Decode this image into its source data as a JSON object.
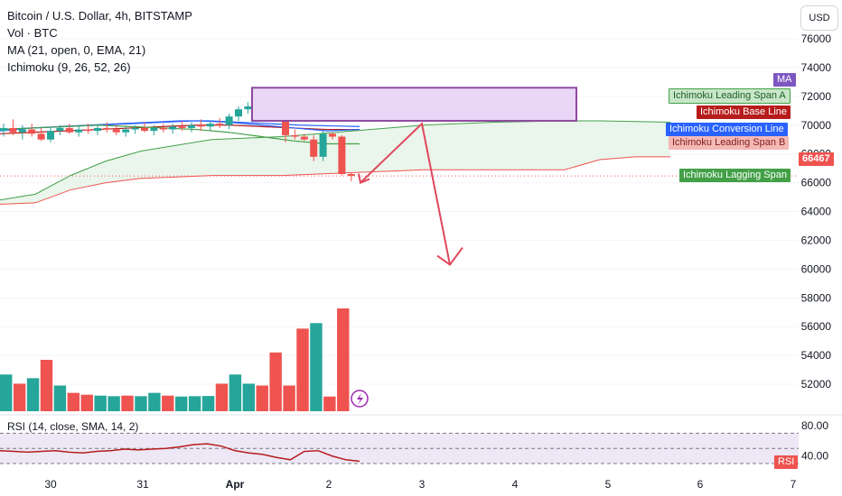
{
  "header": {
    "symbol_title": "Bitcoin / U.S. Dollar, 4h, BITSTAMP",
    "volume_label": "Vol · BTC",
    "ma_label": "MA (21, open, 0, EMA, 21)",
    "ichimoku_label": "Ichimoku (9, 26, 52, 26)",
    "currency_button": "USD"
  },
  "rsi_panel": {
    "label": "RSI (14, close, SMA, 14, 2)",
    "axis_ticks": [
      "80.00",
      "40.00"
    ],
    "tag": "RSI"
  },
  "price_tags": {
    "ma": "MA",
    "leading_span_a": "Ichimoku Leading Span A",
    "base_line": "Ichimoku Base Line",
    "conversion_line": "Ichimoku Conversion Line",
    "leading_span_b": "Ichimoku Leading Span B",
    "last_price": "66467",
    "lagging_span": "Ichimoku Lagging Span"
  },
  "colors": {
    "bull": "#26a69a",
    "bear": "#ef5350",
    "ma": "#2962ff",
    "conversion": "#2962ff",
    "base": "#b71c1c",
    "span_a": "#43a047",
    "span_b": "#ef5350",
    "lagging": "#43a047",
    "cloud": "#e8f5e9",
    "zone_fill": "#ead7f7",
    "zone_border": "#8e4a9e",
    "arrow": "#e0475b",
    "rsi_line": "#b71c1c",
    "rsi_band": "#ede7f6"
  },
  "chart_data": {
    "type": "candlestick",
    "y_axis": {
      "ticks": [
        76000,
        74000,
        72000,
        70000,
        68000,
        66000,
        64000,
        62000,
        60000,
        58000,
        56000,
        54000,
        52000
      ],
      "range": [
        50000,
        77000
      ]
    },
    "x_axis": {
      "tick_labels": [
        "30",
        "31",
        "Apr",
        "2",
        "3",
        "4",
        "5",
        "6",
        "7"
      ]
    },
    "last_price": 66467,
    "candles": [
      {
        "o": 69600,
        "h": 70100,
        "l": 69200,
        "c": 69800
      },
      {
        "o": 69800,
        "h": 70400,
        "l": 69300,
        "c": 69500
      },
      {
        "o": 69500,
        "h": 70000,
        "l": 69000,
        "c": 69700
      },
      {
        "o": 69700,
        "h": 70100,
        "l": 69200,
        "c": 69400
      },
      {
        "o": 69400,
        "h": 69800,
        "l": 68900,
        "c": 69000
      },
      {
        "o": 69000,
        "h": 69800,
        "l": 68800,
        "c": 69600
      },
      {
        "o": 69600,
        "h": 70000,
        "l": 69300,
        "c": 69800
      },
      {
        "o": 69800,
        "h": 70100,
        "l": 69400,
        "c": 69500
      },
      {
        "o": 69500,
        "h": 70000,
        "l": 69200,
        "c": 69700
      },
      {
        "o": 69700,
        "h": 70100,
        "l": 69400,
        "c": 69600
      },
      {
        "o": 69600,
        "h": 70000,
        "l": 69300,
        "c": 69800
      },
      {
        "o": 69800,
        "h": 70200,
        "l": 69500,
        "c": 69700
      },
      {
        "o": 69700,
        "h": 70000,
        "l": 69300,
        "c": 69500
      },
      {
        "o": 69500,
        "h": 69900,
        "l": 69200,
        "c": 69700
      },
      {
        "o": 69700,
        "h": 70000,
        "l": 69400,
        "c": 69800
      },
      {
        "o": 69800,
        "h": 70200,
        "l": 69500,
        "c": 69600
      },
      {
        "o": 69600,
        "h": 70000,
        "l": 69300,
        "c": 69800
      },
      {
        "o": 69800,
        "h": 70100,
        "l": 69500,
        "c": 69700
      },
      {
        "o": 69700,
        "h": 70100,
        "l": 69400,
        "c": 69900
      },
      {
        "o": 69900,
        "h": 70300,
        "l": 69600,
        "c": 69800
      },
      {
        "o": 69800,
        "h": 70200,
        "l": 69500,
        "c": 70000
      },
      {
        "o": 70000,
        "h": 70400,
        "l": 69600,
        "c": 69900
      },
      {
        "o": 69900,
        "h": 70300,
        "l": 69600,
        "c": 70100
      },
      {
        "o": 70100,
        "h": 70500,
        "l": 69800,
        "c": 70000
      },
      {
        "o": 70000,
        "h": 70800,
        "l": 69700,
        "c": 70600
      },
      {
        "o": 70600,
        "h": 71300,
        "l": 70300,
        "c": 71100
      },
      {
        "o": 71100,
        "h": 71600,
        "l": 70800,
        "c": 71300
      },
      {
        "o": 71300,
        "h": 71500,
        "l": 70900,
        "c": 71200
      },
      {
        "o": 71200,
        "h": 71600,
        "l": 70900,
        "c": 71400
      },
      {
        "o": 71400,
        "h": 71500,
        "l": 70600,
        "c": 70600
      },
      {
        "o": 70600,
        "h": 70700,
        "l": 68800,
        "c": 69300
      },
      {
        "o": 69300,
        "h": 69700,
        "l": 69000,
        "c": 69200
      },
      {
        "o": 69200,
        "h": 69400,
        "l": 68900,
        "c": 69000
      },
      {
        "o": 69000,
        "h": 69300,
        "l": 67500,
        "c": 67800
      },
      {
        "o": 67800,
        "h": 69600,
        "l": 67500,
        "c": 69400
      },
      {
        "o": 69400,
        "h": 69500,
        "l": 69000,
        "c": 69200
      },
      {
        "o": 69200,
        "h": 69300,
        "l": 66500,
        "c": 66600
      },
      {
        "o": 66600,
        "h": 66700,
        "l": 66100,
        "c": 66467
      }
    ],
    "volume": [
      {
        "v": 2000,
        "up": true
      },
      {
        "v": 1500,
        "up": false
      },
      {
        "v": 1800,
        "up": true
      },
      {
        "v": 2800,
        "up": false
      },
      {
        "v": 1400,
        "up": true
      },
      {
        "v": 1000,
        "up": false
      },
      {
        "v": 900,
        "up": false
      },
      {
        "v": 850,
        "up": true
      },
      {
        "v": 820,
        "up": true
      },
      {
        "v": 850,
        "up": false
      },
      {
        "v": 820,
        "up": true
      },
      {
        "v": 1000,
        "up": true
      },
      {
        "v": 850,
        "up": false
      },
      {
        "v": 800,
        "up": true
      },
      {
        "v": 820,
        "up": true
      },
      {
        "v": 830,
        "up": true
      },
      {
        "v": 1500,
        "up": false
      },
      {
        "v": 2000,
        "up": true
      },
      {
        "v": 1500,
        "up": true
      },
      {
        "v": 1400,
        "up": false
      },
      {
        "v": 3200,
        "up": false
      },
      {
        "v": 1400,
        "up": false
      },
      {
        "v": 4500,
        "up": false
      },
      {
        "v": 4800,
        "up": true
      },
      {
        "v": 800,
        "up": false
      },
      {
        "v": 5600,
        "up": false
      }
    ],
    "moving_average": {
      "name": "MA",
      "values": [
        69700,
        69800,
        69900,
        70000,
        70100,
        70200,
        70300,
        70300,
        70200,
        70100,
        70000,
        69950,
        69900
      ]
    },
    "ichimoku": {
      "span_a": [
        64800,
        65200,
        66500,
        67500,
        68200,
        68600,
        69000,
        69100,
        69200,
        69400,
        69600,
        69800,
        70000,
        70100,
        70200,
        70250,
        70300,
        70300,
        70250,
        70200
      ],
      "span_b": [
        64500,
        64600,
        65500,
        66000,
        66300,
        66400,
        66500,
        66500,
        66500,
        66600,
        66700,
        66800,
        66900,
        66900,
        66900,
        66900,
        66900,
        67600,
        67800,
        67800
      ],
      "base_line": [
        69400,
        69500,
        69600,
        69700,
        69800,
        69900,
        70000,
        70000,
        69900,
        69800,
        69700,
        69700
      ],
      "conversion_line": [
        69600,
        69800,
        69900,
        70000,
        70100,
        70200,
        70300,
        70200,
        70000,
        69800,
        69600,
        69700
      ],
      "lagging_span": [
        69700,
        69800,
        69900,
        70000,
        69900,
        69800,
        69700,
        69500,
        69200,
        68900,
        68700,
        68700
      ]
    },
    "rsi": {
      "levels": [
        70,
        50,
        30
      ],
      "values": [
        47,
        46,
        45,
        46,
        47,
        45,
        44,
        46,
        47,
        49,
        48,
        49,
        50,
        52,
        55,
        56,
        53,
        47,
        44,
        42,
        38,
        35,
        46,
        47,
        40,
        35,
        33
      ]
    },
    "annotations": {
      "zone": {
        "x_start_label": "Apr",
        "x_end_label": "4",
        "y_top": 72600,
        "y_bottom": 70300
      },
      "projection_arrow": [
        {
          "x_label": "2",
          "y": 66000
        },
        {
          "x_label": "3",
          "y": 70100
        },
        {
          "x_label": "3",
          "y": 60300
        }
      ]
    }
  }
}
